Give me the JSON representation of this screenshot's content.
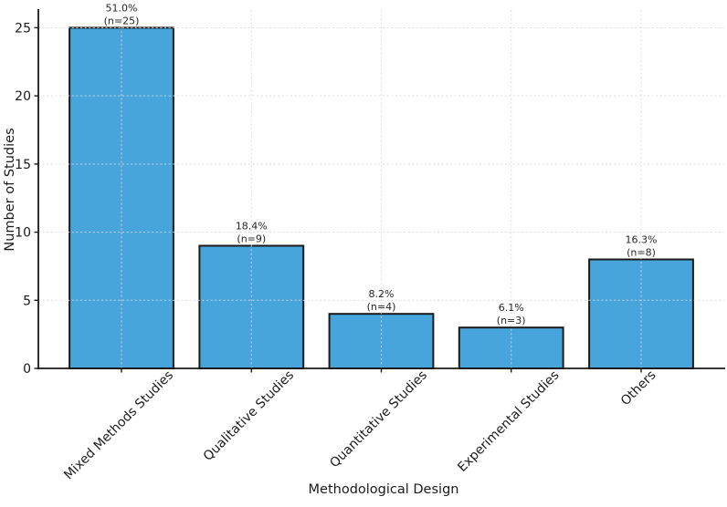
{
  "chart_data": {
    "type": "bar",
    "title": "",
    "xlabel": "Methodological Design",
    "ylabel": "Number of Studies",
    "categories": [
      "Mixed Methods Studies",
      "Qualitative Studies",
      "Quantitative Studies",
      "Experimental Studies",
      "Others"
    ],
    "values": [
      25,
      9,
      4,
      3,
      8
    ],
    "bar_labels": [
      [
        "51.0%",
        "(n=25)"
      ],
      [
        "18.4%",
        "(n=9)"
      ],
      [
        "8.2%",
        "(n=4)"
      ],
      [
        "6.1%",
        "(n=3)"
      ],
      [
        "16.3%",
        "(n=8)"
      ]
    ],
    "yticks": [
      0,
      5,
      10,
      15,
      20,
      25
    ],
    "ylim": [
      0,
      26.3
    ],
    "grid": true,
    "grid_style": "dashed",
    "legend_position": "none",
    "bar_color": "#48a5dc",
    "bar_edge_color": "#1a1a1a",
    "grid_color": "#d9d9d9",
    "axis_color": "#1a1a1a",
    "text_color": "#262626"
  }
}
